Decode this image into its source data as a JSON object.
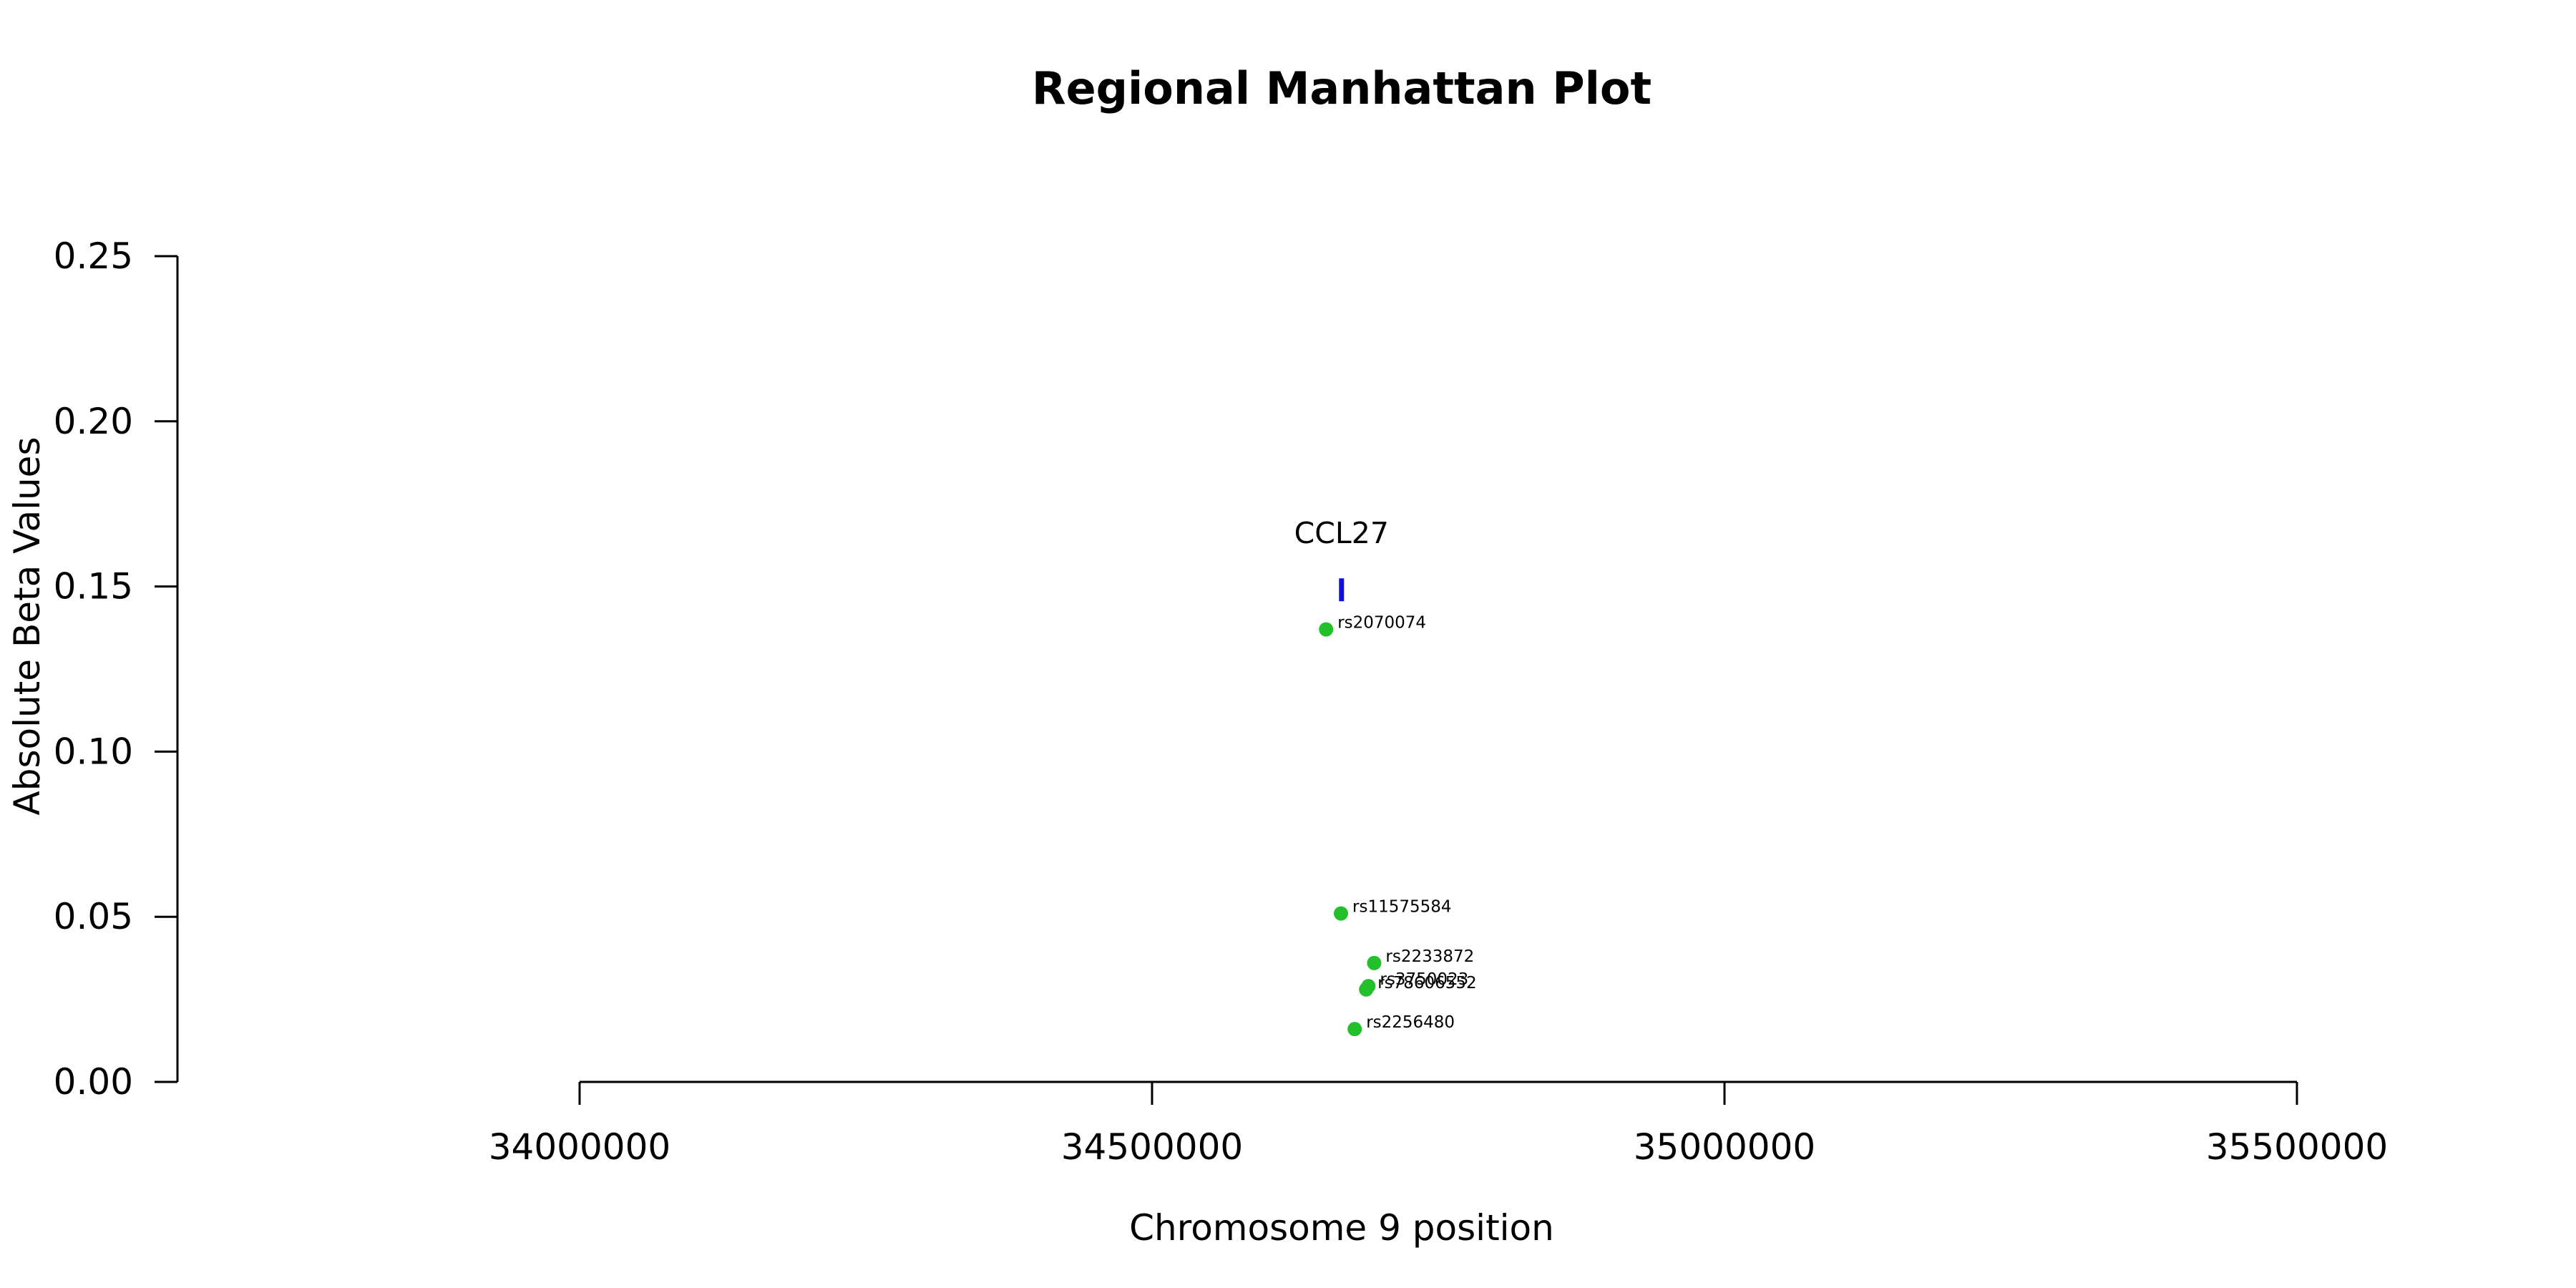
{
  "chart_data": {
    "type": "scatter",
    "title": "Regional Manhattan Plot",
    "xlabel": "Chromosome 9 position",
    "ylabel": "Absolute Beta Values",
    "xlim": [
      33650000,
      35500000
    ],
    "ylim": [
      0,
      0.25
    ],
    "x_ticks": [
      {
        "value": 34000000,
        "label": "34000000"
      },
      {
        "value": 34500000,
        "label": "34500000"
      },
      {
        "value": 35000000,
        "label": "35000000"
      },
      {
        "value": 35500000,
        "label": "35500000"
      }
    ],
    "y_ticks": [
      {
        "value": 0.0,
        "label": "0.00"
      },
      {
        "value": 0.05,
        "label": "0.05"
      },
      {
        "value": 0.1,
        "label": "0.10"
      },
      {
        "value": 0.15,
        "label": "0.15"
      },
      {
        "value": 0.2,
        "label": "0.20"
      },
      {
        "value": 0.25,
        "label": "0.25"
      }
    ],
    "grid": false,
    "point_color": "#22c02a",
    "gene_color": "#1010d8",
    "points": [
      {
        "label": "rs2070074",
        "x": 34652000,
        "y": 0.137
      },
      {
        "label": "rs11575584",
        "x": 34665000,
        "y": 0.051
      },
      {
        "label": "rs2233872",
        "x": 34694000,
        "y": 0.036
      },
      {
        "label": "rs3750023",
        "x": 34689000,
        "y": 0.029
      },
      {
        "label": "rs78606552",
        "x": 34687000,
        "y": 0.028
      },
      {
        "label": "rs2256480",
        "x": 34677000,
        "y": 0.016
      }
    ],
    "genes": [
      {
        "name": "CCL27",
        "start": 34665000,
        "end": 34666000,
        "y": 0.149
      }
    ]
  }
}
